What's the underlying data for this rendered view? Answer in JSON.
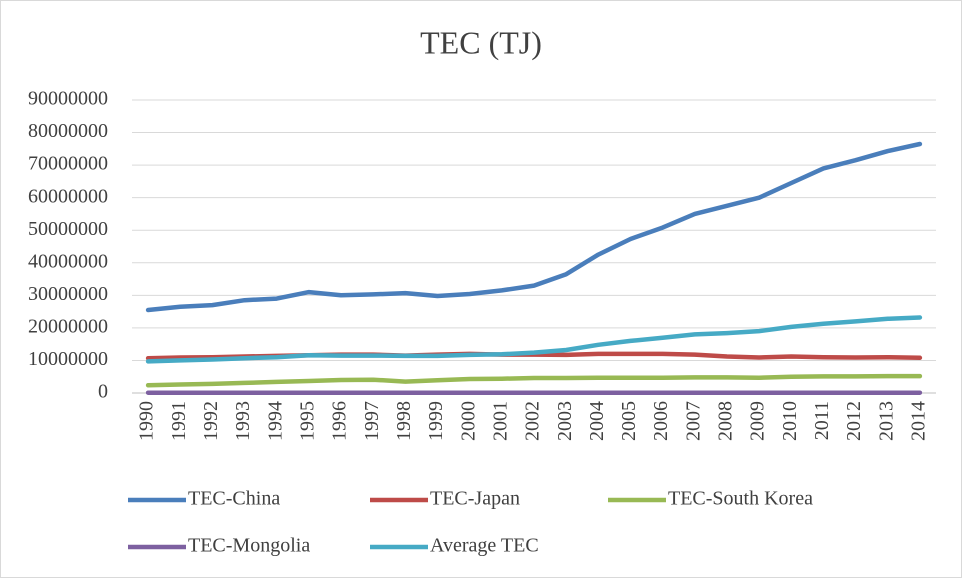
{
  "chart_data": {
    "type": "line",
    "title": "TEC (TJ)",
    "categories": [
      "1990",
      "1991",
      "1992",
      "1993",
      "1994",
      "1995",
      "1996",
      "1997",
      "1998",
      "1999",
      "2000",
      "2001",
      "2002",
      "2003",
      "2004",
      "2005",
      "2006",
      "2007",
      "2008",
      "2009",
      "2010",
      "2011",
      "2012",
      "2013",
      "2014"
    ],
    "series": [
      {
        "name": "TEC-China",
        "color": "#4a7ebb",
        "values": [
          25500000,
          26500000,
          27000000,
          28500000,
          29000000,
          31000000,
          30000000,
          30300000,
          30700000,
          29800000,
          30400000,
          31500000,
          33000000,
          36500000,
          42500000,
          47300000,
          50800000,
          55000000,
          57500000,
          60000000,
          64500000,
          69000000,
          71500000,
          74300000,
          76500000
        ]
      },
      {
        "name": "TEC-Japan",
        "color": "#be4b48",
        "values": [
          10700000,
          10900000,
          11000000,
          11200000,
          11400000,
          11600000,
          11800000,
          11800000,
          11500000,
          11800000,
          12000000,
          11800000,
          11800000,
          11700000,
          12000000,
          12000000,
          12000000,
          11800000,
          11200000,
          10900000,
          11200000,
          11000000,
          10900000,
          11000000,
          10800000
        ]
      },
      {
        "name": "TEC-South Korea",
        "color": "#98b954",
        "values": [
          2400000,
          2600000,
          2800000,
          3100000,
          3400000,
          3700000,
          4000000,
          4100000,
          3500000,
          3900000,
          4300000,
          4400000,
          4600000,
          4600000,
          4700000,
          4700000,
          4700000,
          4800000,
          4800000,
          4700000,
          5000000,
          5100000,
          5100000,
          5200000,
          5200000
        ]
      },
      {
        "name": "TEC-Mongolia",
        "color": "#7d60a0",
        "values": [
          100000,
          100000,
          100000,
          100000,
          100000,
          100000,
          100000,
          100000,
          100000,
          100000,
          100000,
          100000,
          100000,
          100000,
          100000,
          100000,
          100000,
          100000,
          100000,
          100000,
          100000,
          100000,
          100000,
          100000,
          100000
        ]
      },
      {
        "name": "Average TEC",
        "color": "#46aac5",
        "values": [
          9700000,
          10000000,
          10300000,
          10700000,
          11000000,
          11600000,
          11500000,
          11500000,
          11400000,
          11400000,
          11700000,
          11900000,
          12400000,
          13200000,
          14800000,
          16000000,
          17000000,
          18000000,
          18400000,
          19000000,
          20300000,
          21300000,
          22000000,
          22800000,
          23200000
        ]
      }
    ],
    "ylim": [
      0,
      90000000
    ],
    "yticks": [
      0,
      10000000,
      20000000,
      30000000,
      40000000,
      50000000,
      60000000,
      70000000,
      80000000,
      90000000
    ],
    "grid": true,
    "legend": "bottom"
  }
}
